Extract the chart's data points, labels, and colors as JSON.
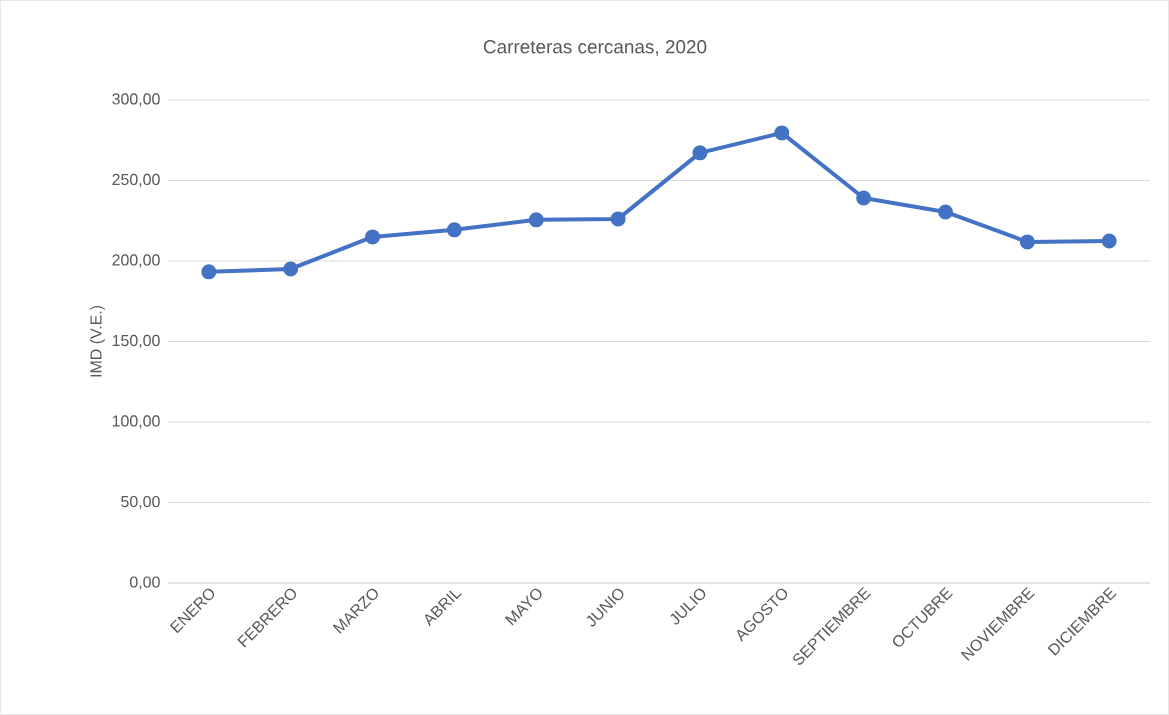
{
  "chart_data": {
    "type": "line",
    "title": "Carreteras cercanas, 2020",
    "ylabel": "IMD (V.E.)",
    "categories": [
      "ENERO",
      "FEBRERO",
      "MARZO",
      "ABRIL",
      "MAYO",
      "JUNIO",
      "JULIO",
      "AGOSTO",
      "SEPTIEMBRE",
      "OCTUBRE",
      "NOVIEMBRE",
      "DICIEMBRE"
    ],
    "series": [
      {
        "color": "#4472c4",
        "values": [
          193.2,
          195.0,
          214.9,
          219.3,
          225.5,
          226.1,
          267.1,
          279.5,
          239.1,
          230.4,
          211.8,
          212.4
        ]
      }
    ],
    "ylim": [
      0,
      300
    ],
    "yticks": [
      {
        "value": 0,
        "label": "0,00"
      },
      {
        "value": 50,
        "label": "50,00"
      },
      {
        "value": 100,
        "label": "100,00"
      },
      {
        "value": 150,
        "label": "150,00"
      },
      {
        "value": 200,
        "label": "200,00"
      },
      {
        "value": 250,
        "label": "250,00"
      },
      {
        "value": 300,
        "label": "300,00"
      }
    ],
    "grid": "y",
    "marker": "circle",
    "line_style": "solid"
  }
}
